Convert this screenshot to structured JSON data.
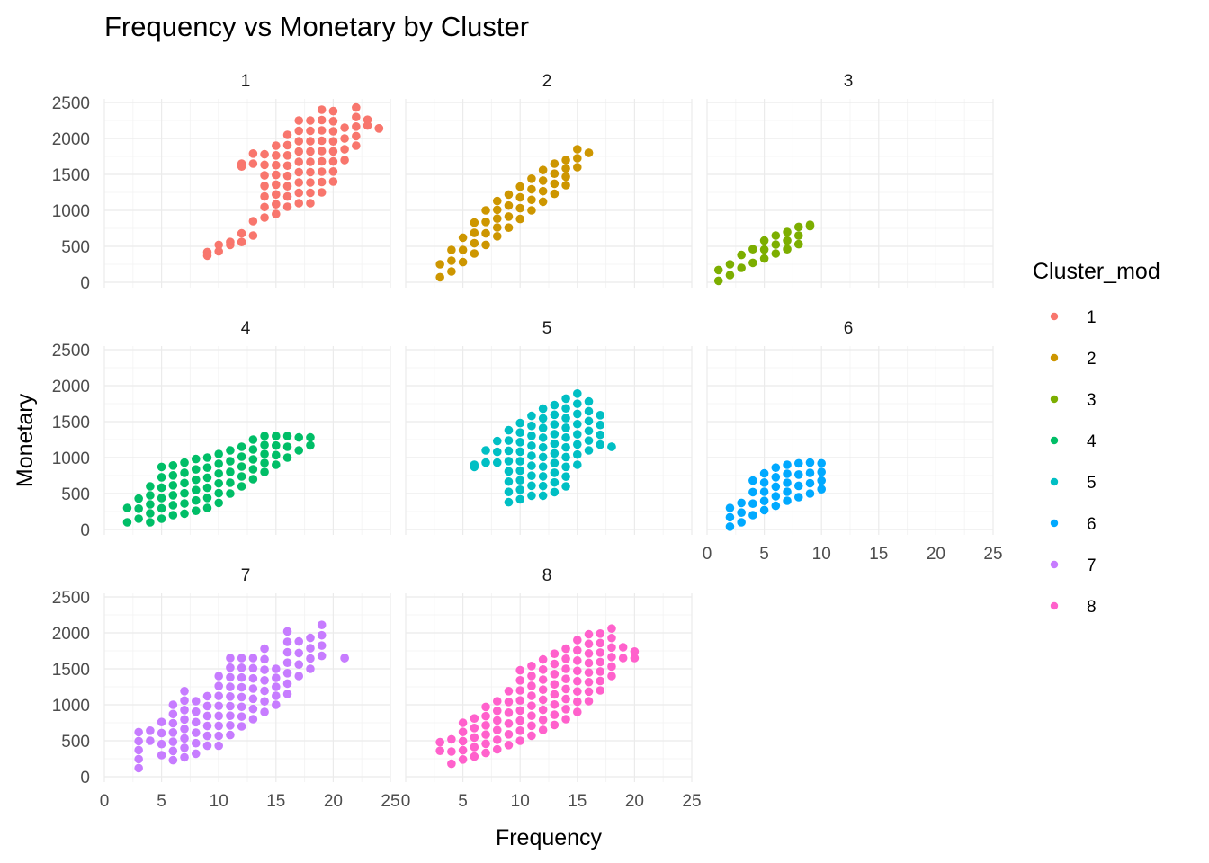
{
  "chart_data": {
    "type": "scatter",
    "title": "Frequency vs Monetary by Cluster",
    "xlabel": "Frequency",
    "ylabel": "Monetary",
    "xlim": [
      0,
      25
    ],
    "ylim": [
      0,
      2500
    ],
    "xticks": [
      "0",
      "5",
      "10",
      "15",
      "20",
      "25"
    ],
    "yticks": [
      "0",
      "500",
      "1000",
      "1500",
      "2000",
      "2500"
    ],
    "grid": true,
    "facet_columns": 3,
    "legend": {
      "title": "Cluster_mod",
      "position": "right",
      "entries": [
        "1",
        "2",
        "3",
        "4",
        "5",
        "6",
        "7",
        "8"
      ]
    },
    "series": [
      {
        "name": "1",
        "color": "#F8766D",
        "columns": [
          [
            9,
            370,
            420
          ],
          [
            10,
            430,
            520
          ],
          [
            11,
            520,
            560
          ],
          [
            12,
            560,
            680
          ],
          [
            12,
            1610,
            1650
          ],
          [
            13,
            650,
            850
          ],
          [
            13,
            1650,
            1790
          ],
          [
            14,
            900,
            1780
          ],
          [
            15,
            950,
            1900
          ],
          [
            16,
            1050,
            2050
          ],
          [
            17,
            1100,
            2250
          ],
          [
            18,
            1100,
            2250
          ],
          [
            19,
            1250,
            2400
          ],
          [
            20,
            1400,
            2380
          ],
          [
            21,
            1700,
            2150
          ],
          [
            22,
            1900,
            2430
          ],
          [
            23,
            2180,
            2260
          ],
          [
            24,
            2140,
            2140
          ]
        ]
      },
      {
        "name": "2",
        "color": "#CD9600",
        "columns": [
          [
            3,
            70,
            250
          ],
          [
            4,
            150,
            450
          ],
          [
            5,
            280,
            620
          ],
          [
            6,
            400,
            830
          ],
          [
            7,
            520,
            1000
          ],
          [
            8,
            640,
            1130
          ],
          [
            9,
            760,
            1220
          ],
          [
            10,
            880,
            1330
          ],
          [
            11,
            1000,
            1440
          ],
          [
            12,
            1120,
            1560
          ],
          [
            13,
            1230,
            1650
          ],
          [
            14,
            1350,
            1700
          ],
          [
            15,
            1600,
            1850
          ],
          [
            16,
            1800,
            1800
          ]
        ]
      },
      {
        "name": "3",
        "color": "#7CAE00",
        "columns": [
          [
            1,
            20,
            170
          ],
          [
            2,
            100,
            250
          ],
          [
            3,
            200,
            380
          ],
          [
            4,
            270,
            460
          ],
          [
            5,
            330,
            580
          ],
          [
            6,
            400,
            650
          ],
          [
            7,
            460,
            700
          ],
          [
            8,
            530,
            770
          ],
          [
            9,
            780,
            800
          ]
        ]
      },
      {
        "name": "4",
        "color": "#00BE67",
        "columns": [
          [
            2,
            100,
            300
          ],
          [
            3,
            150,
            430
          ],
          [
            4,
            100,
            600
          ],
          [
            5,
            150,
            870
          ],
          [
            6,
            200,
            890
          ],
          [
            7,
            220,
            930
          ],
          [
            8,
            260,
            980
          ],
          [
            9,
            300,
            1000
          ],
          [
            10,
            370,
            1050
          ],
          [
            11,
            500,
            1100
          ],
          [
            12,
            600,
            1150
          ],
          [
            13,
            700,
            1250
          ],
          [
            14,
            800,
            1300
          ],
          [
            15,
            900,
            1300
          ],
          [
            16,
            1000,
            1300
          ],
          [
            17,
            1100,
            1280
          ],
          [
            18,
            1170,
            1280
          ]
        ]
      },
      {
        "name": "5",
        "color": "#00BFC4",
        "columns": [
          [
            6,
            870,
            900
          ],
          [
            7,
            930,
            1100
          ],
          [
            8,
            930,
            1230
          ],
          [
            9,
            380,
            1380
          ],
          [
            10,
            420,
            1480
          ],
          [
            11,
            470,
            1580
          ],
          [
            12,
            470,
            1680
          ],
          [
            13,
            520,
            1730
          ],
          [
            14,
            600,
            1820
          ],
          [
            15,
            900,
            1890
          ],
          [
            16,
            1100,
            1780
          ],
          [
            17,
            1180,
            1590
          ],
          [
            18,
            1150,
            1150
          ]
        ]
      },
      {
        "name": "6",
        "color": "#00A9FF",
        "columns": [
          [
            2,
            40,
            300
          ],
          [
            3,
            100,
            370
          ],
          [
            4,
            200,
            680
          ],
          [
            5,
            270,
            780
          ],
          [
            6,
            330,
            860
          ],
          [
            7,
            400,
            900
          ],
          [
            8,
            450,
            920
          ],
          [
            9,
            500,
            930
          ],
          [
            10,
            560,
            920
          ]
        ]
      },
      {
        "name": "7",
        "color": "#C77CFF",
        "columns": [
          [
            3,
            120,
            620
          ],
          [
            4,
            500,
            640
          ],
          [
            5,
            300,
            760
          ],
          [
            6,
            230,
            1000
          ],
          [
            7,
            270,
            1190
          ],
          [
            8,
            320,
            1050
          ],
          [
            9,
            430,
            1120
          ],
          [
            10,
            430,
            1400
          ],
          [
            11,
            580,
            1650
          ],
          [
            12,
            700,
            1650
          ],
          [
            13,
            800,
            1650
          ],
          [
            14,
            900,
            1780
          ],
          [
            15,
            1000,
            1500
          ],
          [
            16,
            1150,
            2020
          ],
          [
            17,
            1400,
            1880
          ],
          [
            18,
            1500,
            1930
          ],
          [
            19,
            1680,
            2110
          ],
          [
            21,
            1650,
            1650
          ]
        ]
      },
      {
        "name": "8",
        "color": "#FF61CC",
        "columns": [
          [
            3,
            360,
            480
          ],
          [
            4,
            180,
            520
          ],
          [
            5,
            240,
            750
          ],
          [
            6,
            280,
            810
          ],
          [
            7,
            330,
            970
          ],
          [
            8,
            380,
            1050
          ],
          [
            9,
            440,
            1190
          ],
          [
            10,
            500,
            1480
          ],
          [
            11,
            570,
            1540
          ],
          [
            12,
            650,
            1630
          ],
          [
            13,
            720,
            1710
          ],
          [
            14,
            800,
            1780
          ],
          [
            15,
            900,
            1900
          ],
          [
            16,
            1050,
            1980
          ],
          [
            17,
            1200,
            1990
          ],
          [
            18,
            1400,
            2060
          ],
          [
            19,
            1650,
            1800
          ],
          [
            20,
            1650,
            1740
          ]
        ]
      }
    ]
  }
}
